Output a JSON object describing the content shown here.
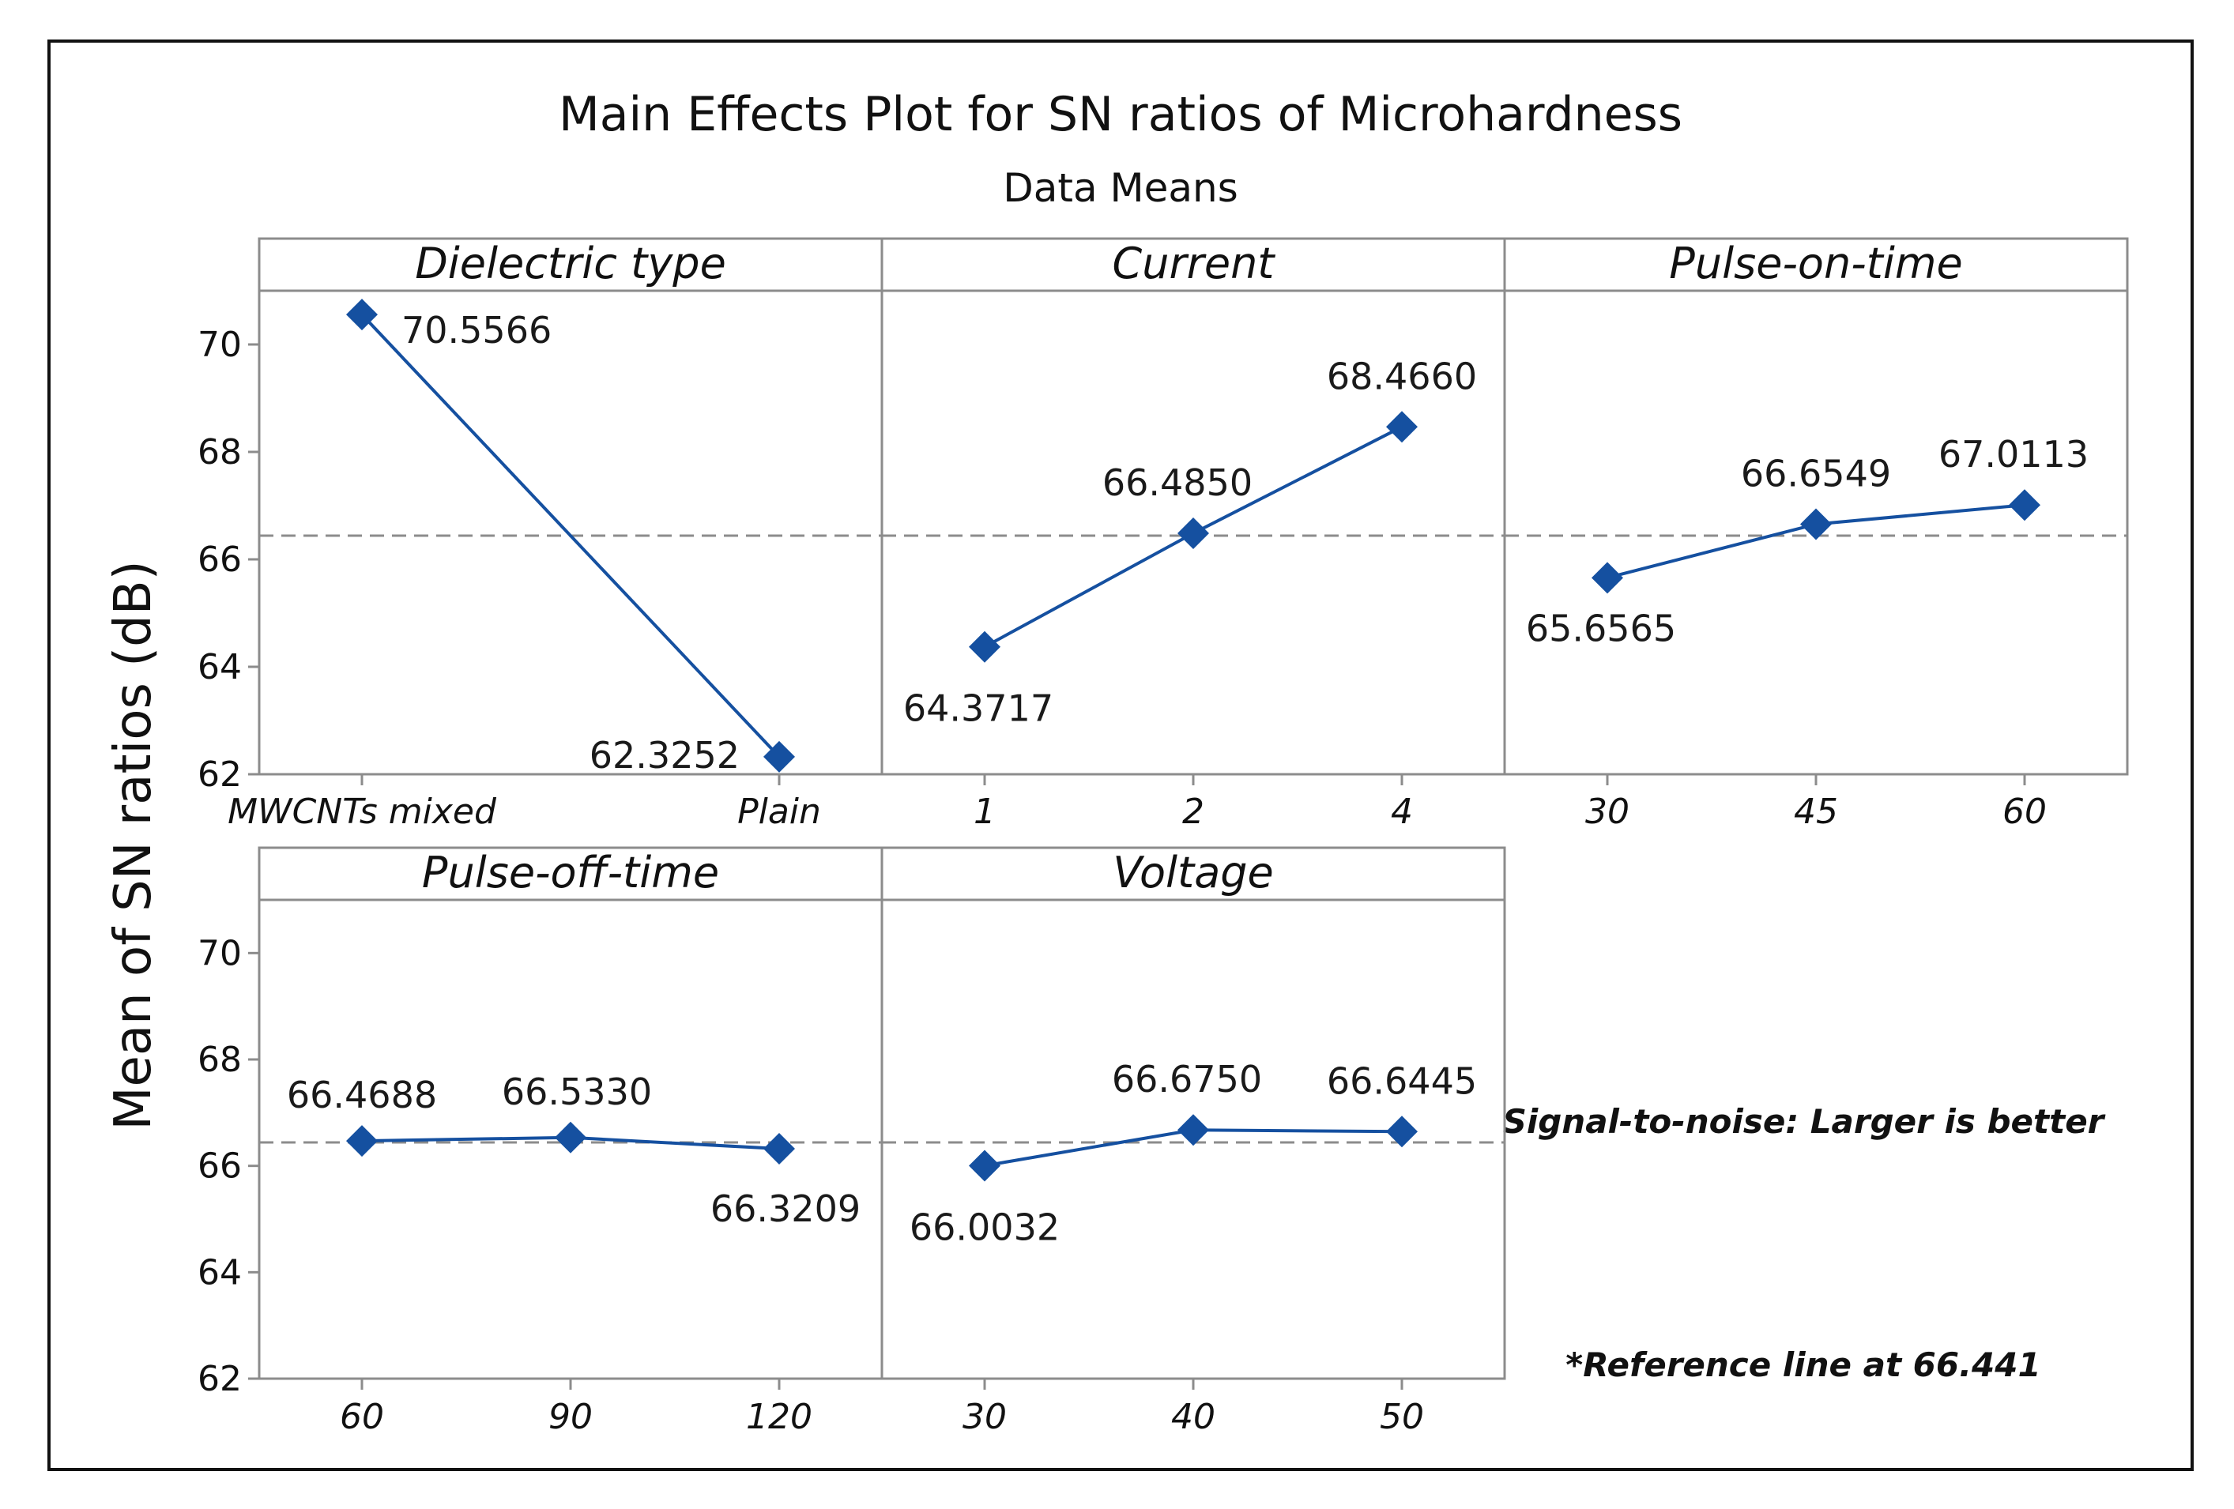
{
  "chart_data": {
    "type": "line",
    "title": "Main Effects Plot for SN ratios of Microhardness",
    "subtitle": "Data Means",
    "ylabel": "Mean of SN ratios (dB)",
    "ylim": [
      62,
      71
    ],
    "yticks": [
      62,
      64,
      66,
      68,
      70
    ],
    "reference_line": 66.441,
    "series_color": "#1550a0",
    "reference_color": "#8c8c8c",
    "panels": [
      {
        "name": "Dielectric type",
        "categories": [
          "MWCNTs mixed",
          "Plain"
        ],
        "values": [
          70.5566,
          62.3252
        ],
        "labels": [
          "70.5566",
          "62.3252"
        ]
      },
      {
        "name": "Current",
        "categories": [
          "1",
          "2",
          "4"
        ],
        "values": [
          64.3717,
          66.485,
          68.466
        ],
        "labels": [
          "64.3717",
          "66.4850",
          "68.4660"
        ]
      },
      {
        "name": "Pulse-on-time",
        "categories": [
          "30",
          "45",
          "60"
        ],
        "values": [
          65.6565,
          66.6549,
          67.0113
        ],
        "labels": [
          "65.6565",
          "66.6549",
          "67.0113"
        ]
      },
      {
        "name": "Pulse-off-time",
        "categories": [
          "60",
          "90",
          "120"
        ],
        "values": [
          66.4688,
          66.533,
          66.3209
        ],
        "labels": [
          "66.4688",
          "66.5330",
          "66.3209"
        ]
      },
      {
        "name": "Voltage",
        "categories": [
          "30",
          "40",
          "50"
        ],
        "values": [
          66.0032,
          66.675,
          66.6445
        ],
        "labels": [
          "66.0032",
          "66.6750",
          "66.6445"
        ]
      }
    ],
    "notes": {
      "signal_to_noise": "Signal-to-noise: Larger is better",
      "reference": "*Reference line at 66.441"
    }
  }
}
